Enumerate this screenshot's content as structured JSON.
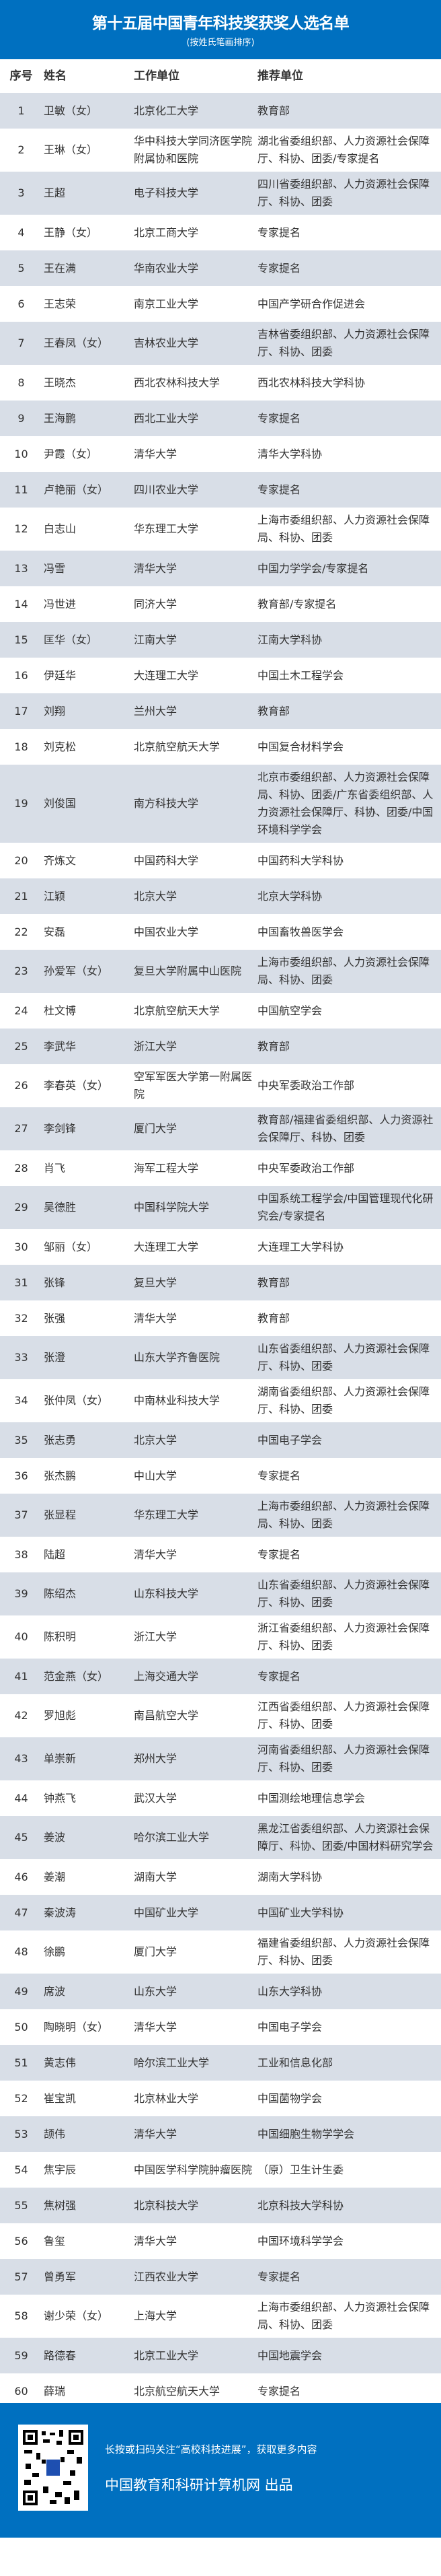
{
  "header": {
    "title": "第十五届中国青年科技奖获奖人选名单",
    "subtitle": "(按姓氏笔画排序)"
  },
  "columns": {
    "no": "序号",
    "name": "姓名",
    "unit": "工作单位",
    "recommender": "推荐单位"
  },
  "colors": {
    "brand": "#0070C0",
    "alt_row": "#D8DEE7"
  },
  "rows": [
    [
      "1",
      "卫敏（女）",
      "北京化工大学",
      "教育部"
    ],
    [
      "2",
      "王琳（女）",
      "华中科技大学同济医学院附属协和医院",
      "湖北省委组织部、人力资源社会保障厅、科协、团委/专家提名"
    ],
    [
      "3",
      "王超",
      "电子科技大学",
      "四川省委组织部、人力资源社会保障厅、科协、团委"
    ],
    [
      "4",
      "王静（女）",
      "北京工商大学",
      "专家提名"
    ],
    [
      "5",
      "王在满",
      "华南农业大学",
      "专家提名"
    ],
    [
      "6",
      "王志荣",
      "南京工业大学",
      "中国产学研合作促进会"
    ],
    [
      "7",
      "王春凤（女）",
      "吉林农业大学",
      "吉林省委组织部、人力资源社会保障厅、科协、团委"
    ],
    [
      "8",
      "王晓杰",
      "西北农林科技大学",
      "西北农林科技大学科协"
    ],
    [
      "9",
      "王海鹏",
      "西北工业大学",
      "专家提名"
    ],
    [
      "10",
      "尹霞（女）",
      "清华大学",
      "清华大学科协"
    ],
    [
      "11",
      "卢艳丽（女）",
      "四川农业大学",
      "专家提名"
    ],
    [
      "12",
      "白志山",
      "华东理工大学",
      "上海市委组织部、人力资源社会保障局、科协、团委"
    ],
    [
      "13",
      "冯雪",
      "清华大学",
      "中国力学学会/专家提名"
    ],
    [
      "14",
      "冯世进",
      "同济大学",
      "教育部/专家提名"
    ],
    [
      "15",
      "匡华（女）",
      "江南大学",
      "江南大学科协"
    ],
    [
      "16",
      "伊廷华",
      "大连理工大学",
      "中国土木工程学会"
    ],
    [
      "17",
      "刘翔",
      "兰州大学",
      "教育部"
    ],
    [
      "18",
      "刘克松",
      "北京航空航天大学",
      "中国复合材料学会"
    ],
    [
      "19",
      "刘俊国",
      "南方科技大学",
      "北京市委组织部、人力资源社会保障局、科协、团委/广东省委组织部、人力资源社会保障厅、科协、团委/中国环境科学学会"
    ],
    [
      "20",
      "齐炼文",
      "中国药科大学",
      "中国药科大学科协"
    ],
    [
      "21",
      "江颖",
      "北京大学",
      "北京大学科协"
    ],
    [
      "22",
      "安磊",
      "中国农业大学",
      "中国畜牧兽医学会"
    ],
    [
      "23",
      "孙爱军（女）",
      "复旦大学附属中山医院",
      "上海市委组织部、人力资源社会保障局、科协、团委"
    ],
    [
      "24",
      "杜文博",
      "北京航空航天大学",
      "中国航空学会"
    ],
    [
      "25",
      "李武华",
      "浙江大学",
      "教育部"
    ],
    [
      "26",
      "李春英（女）",
      "空军军医大学第一附属医院",
      "中央军委政治工作部"
    ],
    [
      "27",
      "李剑锋",
      "厦门大学",
      "教育部/福建省委组织部、人力资源社会保障厅、科协、团委"
    ],
    [
      "28",
      "肖飞",
      "海军工程大学",
      "中央军委政治工作部"
    ],
    [
      "29",
      "吴德胜",
      "中国科学院大学",
      "中国系统工程学会/中国管理现代化研究会/专家提名"
    ],
    [
      "30",
      "邹丽（女）",
      "大连理工大学",
      "大连理工大学科协"
    ],
    [
      "31",
      "张锋",
      "复旦大学",
      "教育部"
    ],
    [
      "32",
      "张强",
      "清华大学",
      "教育部"
    ],
    [
      "33",
      "张澄",
      "山东大学齐鲁医院",
      "山东省委组织部、人力资源社会保障厅、科协、团委"
    ],
    [
      "34",
      "张仲凤（女）",
      "中南林业科技大学",
      "湖南省委组织部、人力资源社会保障厅、科协、团委"
    ],
    [
      "35",
      "张志勇",
      "北京大学",
      "中国电子学会"
    ],
    [
      "36",
      "张杰鹏",
      "中山大学",
      "专家提名"
    ],
    [
      "37",
      "张显程",
      "华东理工大学",
      "上海市委组织部、人力资源社会保障局、科协、团委"
    ],
    [
      "38",
      "陆超",
      "清华大学",
      "专家提名"
    ],
    [
      "39",
      "陈绍杰",
      "山东科技大学",
      "山东省委组织部、人力资源社会保障厅、科协、团委"
    ],
    [
      "40",
      "陈积明",
      "浙江大学",
      "浙江省委组织部、人力资源社会保障厅、科协、团委"
    ],
    [
      "41",
      "范金燕（女）",
      "上海交通大学",
      "专家提名"
    ],
    [
      "42",
      "罗旭彪",
      "南昌航空大学",
      "江西省委组织部、人力资源社会保障厅、科协、团委"
    ],
    [
      "43",
      "单崇新",
      "郑州大学",
      "河南省委组织部、人力资源社会保障厅、科协、团委"
    ],
    [
      "44",
      "钟燕飞",
      "武汉大学",
      "中国测绘地理信息学会"
    ],
    [
      "45",
      "姜波",
      "哈尔滨工业大学",
      "黑龙江省委组织部、人力资源社会保障厅、科协、团委/中国材料研究学会"
    ],
    [
      "46",
      "姜潮",
      "湖南大学",
      "湖南大学科协"
    ],
    [
      "47",
      "秦波涛",
      "中国矿业大学",
      "中国矿业大学科协"
    ],
    [
      "48",
      "徐鹏",
      "厦门大学",
      "福建省委组织部、人力资源社会保障厅、科协、团委"
    ],
    [
      "49",
      "席波",
      "山东大学",
      "山东大学科协"
    ],
    [
      "50",
      "陶晓明（女）",
      "清华大学",
      "中国电子学会"
    ],
    [
      "51",
      "黄志伟",
      "哈尔滨工业大学",
      "工业和信息化部"
    ],
    [
      "52",
      "崔宝凯",
      "北京林业大学",
      "中国菌物学会"
    ],
    [
      "53",
      "颉伟",
      "清华大学",
      "中国细胞生物学学会"
    ],
    [
      "54",
      "焦宇辰",
      "中国医学科学院肿瘤医院",
      "（原）卫生计生委"
    ],
    [
      "55",
      "焦树强",
      "北京科技大学",
      "北京科技大学科协"
    ],
    [
      "56",
      "鲁玺",
      "清华大学",
      "中国环境科学学会"
    ],
    [
      "57",
      "曾勇军",
      "江西农业大学",
      "专家提名"
    ],
    [
      "58",
      "谢少荣（女）",
      "上海大学",
      "上海市委组织部、人力资源社会保障局、科协、团委"
    ],
    [
      "59",
      "路德春",
      "北京工业大学",
      "中国地震学会"
    ],
    [
      "60",
      "薛瑞",
      "北京航空航天大学",
      "专家提名"
    ]
  ],
  "footer": {
    "qr_icon": "qr-code",
    "follow_text": "长按或扫码关注“高校科技进展”，获取更多内容",
    "producer": "中国教育和科研计算机网 出品"
  }
}
